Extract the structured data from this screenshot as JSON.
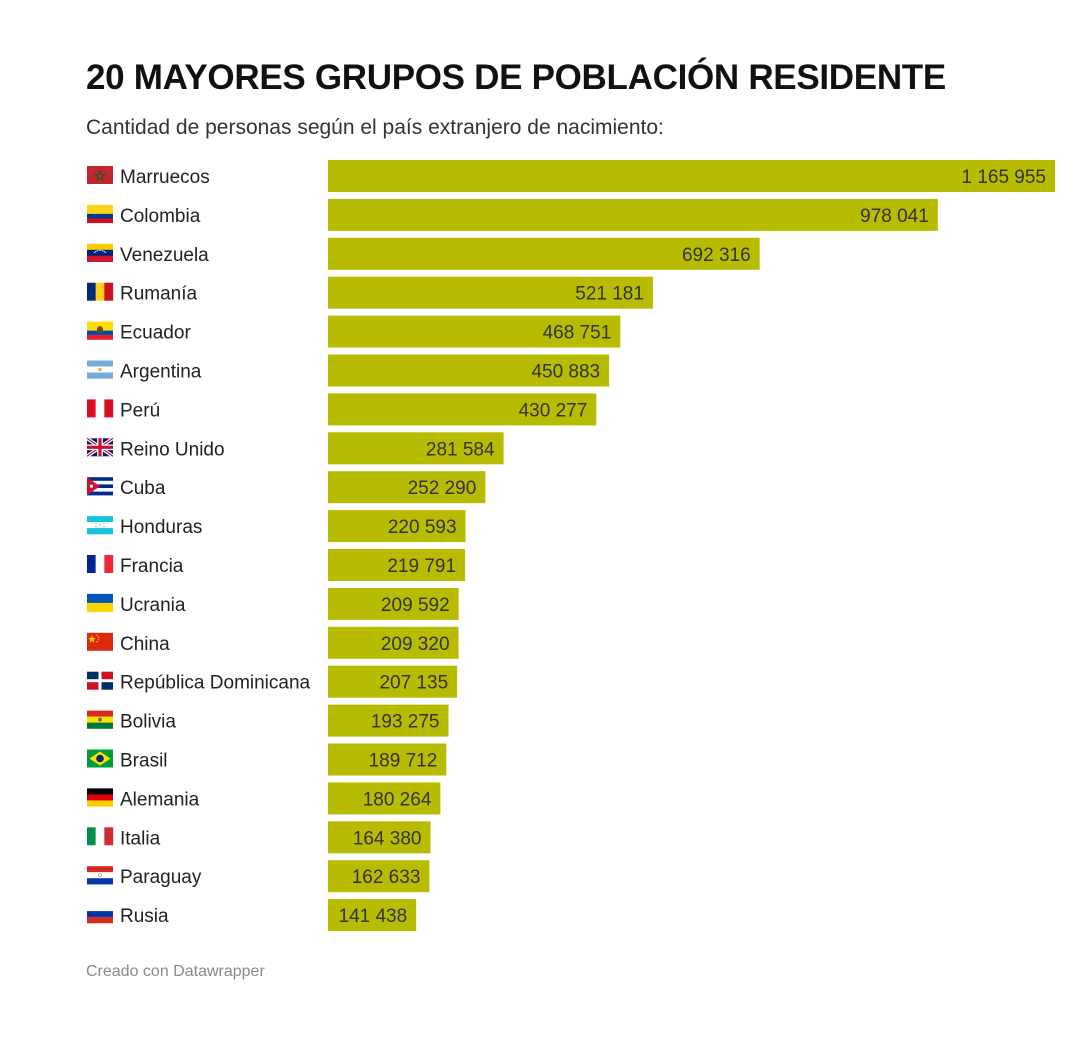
{
  "header": {
    "title": "20 MAYORES GRUPOS DE POBLACIÓN RESIDENTE",
    "subtitle": "Cantidad de personas según el país extranjero de nacimiento:"
  },
  "footer": {
    "credit": "Creado con Datawrapper"
  },
  "colors": {
    "bar": "#b8bc00",
    "text": "#333333"
  },
  "chart_data": {
    "type": "bar",
    "orientation": "horizontal",
    "grid": false,
    "categories": [
      "Marruecos",
      "Colombia",
      "Venezuela",
      "Rumanía",
      "Ecuador",
      "Argentina",
      "Perú",
      "Reino Unido",
      "Cuba",
      "Honduras",
      "Francia",
      "Ucrania",
      "China",
      "República Dominicana",
      "Bolivia",
      "Brasil",
      "Alemania",
      "Italia",
      "Paraguay",
      "Rusia"
    ],
    "values": [
      1165955,
      978041,
      692316,
      521181,
      468751,
      450883,
      430277,
      281584,
      252290,
      220593,
      219791,
      209592,
      209320,
      207135,
      193275,
      189712,
      180264,
      164380,
      162633,
      141438
    ],
    "labels": [
      "1 165 955",
      "978 041",
      "692 316",
      "521 181",
      "468 751",
      "450 883",
      "430 277",
      "281 584",
      "252 290",
      "220 593",
      "219 791",
      "209 592",
      "209 320",
      "207 135",
      "193 275",
      "189 712",
      "180 264",
      "164 380",
      "162 633",
      "141 438"
    ],
    "flags": [
      "morocco-flag-icon",
      "colombia-flag-icon",
      "venezuela-flag-icon",
      "romania-flag-icon",
      "ecuador-flag-icon",
      "argentina-flag-icon",
      "peru-flag-icon",
      "united-kingdom-flag-icon",
      "cuba-flag-icon",
      "honduras-flag-icon",
      "france-flag-icon",
      "ukraine-flag-icon",
      "china-flag-icon",
      "dominican-republic-flag-icon",
      "bolivia-flag-icon",
      "brazil-flag-icon",
      "germany-flag-icon",
      "italy-flag-icon",
      "paraguay-flag-icon",
      "russia-flag-icon"
    ],
    "xlim": [
      0,
      1165955
    ]
  }
}
